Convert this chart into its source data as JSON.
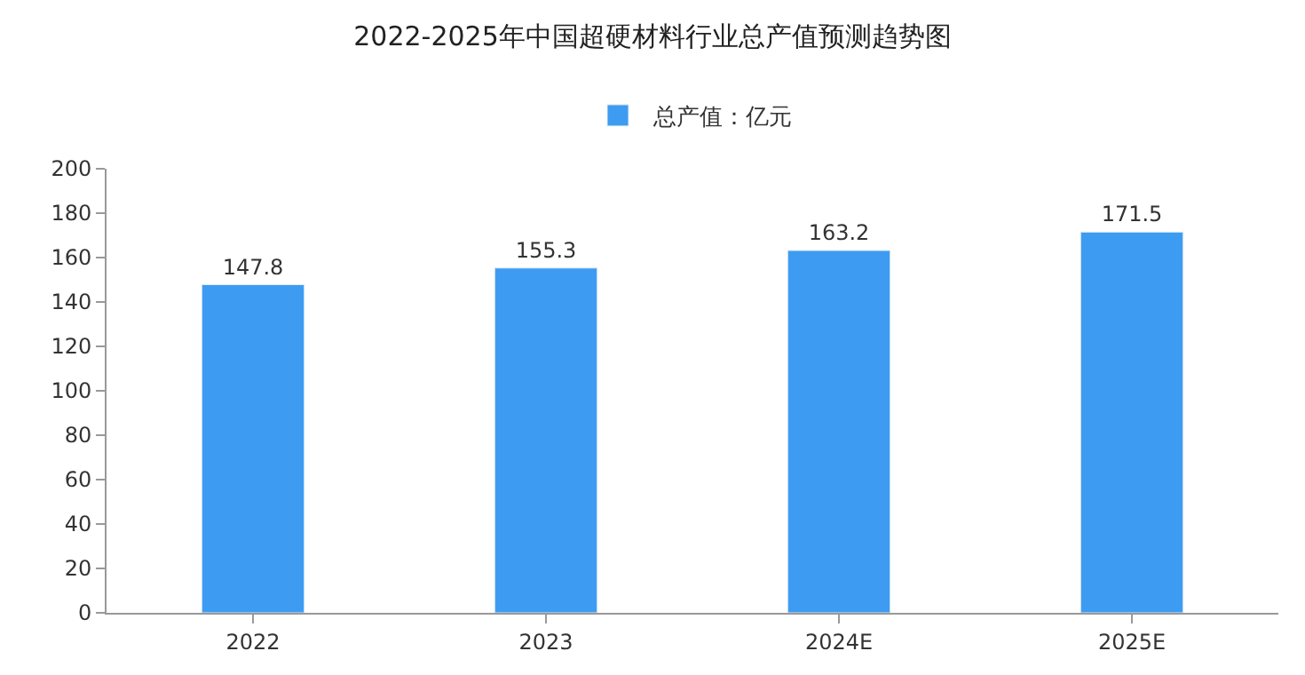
{
  "chart_data": {
    "type": "bar",
    "title": "2022-2025年中国超硬材料行业总产值预测趋势图",
    "categories": [
      "2022",
      "2023",
      "2024E",
      "2025E"
    ],
    "series": [
      {
        "name": "总产值：亿元",
        "color": "#3d9cf2",
        "values": [
          147.8,
          155.3,
          163.2,
          171.5
        ]
      }
    ],
    "ylim": [
      0,
      200
    ],
    "yticks": [
      0,
      20,
      40,
      60,
      80,
      100,
      120,
      140,
      160,
      180,
      200
    ],
    "data_labels": true,
    "legend": "top"
  }
}
